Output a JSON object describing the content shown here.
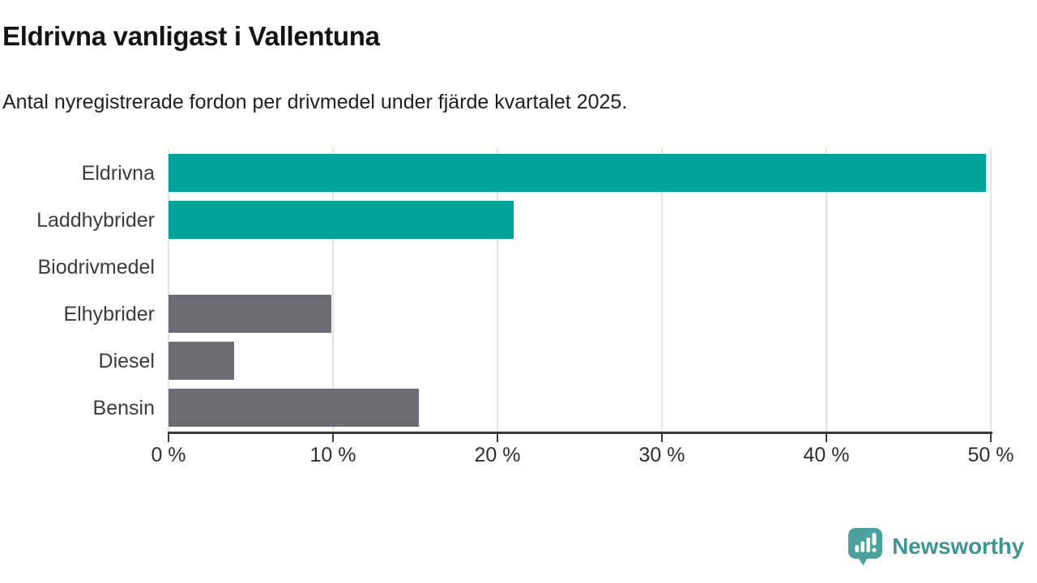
{
  "header": {
    "title": "Eldrivna vanligast i Vallentuna",
    "subtitle": "Antal nyregistrerade fordon per drivmedel under fjärde kvartalet 2025."
  },
  "chart_data": {
    "type": "bar",
    "orientation": "horizontal",
    "title": "Eldrivna vanligast i Vallentuna",
    "subtitle": "Antal nyregistrerade fordon per drivmedel under fjärde kvartalet 2025.",
    "categories": [
      "Eldrivna",
      "Laddhybrider",
      "Biodrivmedel",
      "Elhybrider",
      "Diesel",
      "Bensin"
    ],
    "values": [
      49.7,
      21.0,
      0,
      9.9,
      4.0,
      15.2
    ],
    "unit": "%",
    "xlim": [
      0,
      50
    ],
    "x_ticks": [
      0,
      10,
      20,
      30,
      40,
      50
    ],
    "x_tick_labels": [
      "0 %",
      "10 %",
      "20 %",
      "30 %",
      "40 %",
      "50 %"
    ],
    "bar_colors": [
      "#00a49b",
      "#00a49b",
      "#00a49b",
      "#6b6b72",
      "#6b6b72",
      "#6b6b72"
    ],
    "grid": "vertical",
    "legend": "none",
    "colors": {
      "highlight": "#00a49b",
      "default": "#6b6b72",
      "gridline": "#e3e3e3",
      "axis": "#3a3a3a"
    }
  },
  "footer": {
    "brand": "Newsworthy",
    "logo_icon": "chart-speech-bubble-icon",
    "logo_color": "#4ba19e",
    "text_color": "#3f9593"
  }
}
